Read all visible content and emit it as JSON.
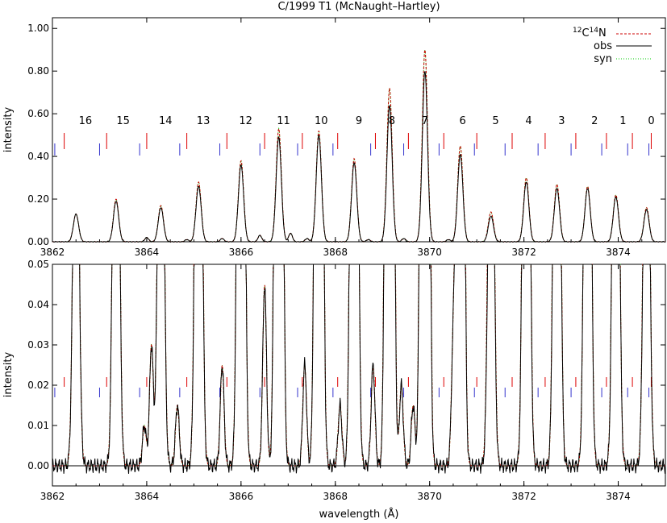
{
  "chart_data": [
    {
      "type": "line",
      "panel": "top",
      "title": "C/1999 T1 (McNaught–Hartley)",
      "xlabel": "",
      "ylabel": "intensity",
      "xlim": [
        3862,
        3875
      ],
      "ylim": [
        0,
        1.05
      ],
      "x_ticks": [
        3862,
        3864,
        3866,
        3868,
        3870,
        3872,
        3874
      ],
      "x_tick_labels": [
        "3862",
        "3864",
        "3866",
        "3868",
        "3870",
        "3872",
        "3874"
      ],
      "y_ticks": [
        0,
        0.2,
        0.4,
        0.6,
        0.8,
        1.0
      ],
      "y_tick_labels": [
        "0.00",
        "0.20",
        "0.40",
        "0.60",
        "0.80",
        "1.00"
      ],
      "legend": {
        "placement": "top-right",
        "entries": [
          {
            "label": "12C14N",
            "label_main_1": "C",
            "label_sup_1": "12",
            "label_main_2": "N",
            "label_sup_2": "14",
            "color": "#cc0000",
            "style": "dashed"
          },
          {
            "label": "obs",
            "color": "#000000",
            "style": "solid"
          },
          {
            "label": "syn",
            "color": "#00cc00",
            "style": "dotted"
          }
        ]
      },
      "line_numbers": [
        "16",
        "15",
        "14",
        "13",
        "12",
        "11",
        "10",
        "9",
        "8",
        "7",
        "6",
        "5",
        "4",
        "3",
        "2",
        "1",
        "0"
      ],
      "line_number_x": [
        3862.7,
        3863.5,
        3864.4,
        3865.2,
        3866.1,
        3866.9,
        3867.7,
        3868.5,
        3869.2,
        3869.9,
        3870.7,
        3871.4,
        3872.1,
        3872.8,
        3873.5,
        3874.1,
        3874.7
      ],
      "red_markers": [
        3862.25,
        3863.15,
        3864.0,
        3864.85,
        3865.7,
        3866.5,
        3867.3,
        3868.05,
        3868.85,
        3869.55,
        3870.3,
        3871.0,
        3871.75,
        3872.45,
        3873.1,
        3873.75,
        3874.3,
        3874.7
      ],
      "blue_markers": [
        3862.05,
        3863.0,
        3863.85,
        3864.7,
        3865.55,
        3866.4,
        3867.2,
        3867.95,
        3868.75,
        3869.45,
        3870.2,
        3870.95,
        3871.6,
        3872.3,
        3873.0,
        3873.65,
        3874.2,
        3874.65
      ],
      "peaks": [
        {
          "x": 3862.5,
          "h_obs": 0.13,
          "h_syn": 0.13
        },
        {
          "x": 3863.35,
          "h_obs": 0.19,
          "h_syn": 0.2
        },
        {
          "x": 3864.3,
          "h_obs": 0.16,
          "h_syn": 0.17
        },
        {
          "x": 3865.1,
          "h_obs": 0.26,
          "h_syn": 0.28
        },
        {
          "x": 3866.0,
          "h_obs": 0.36,
          "h_syn": 0.38
        },
        {
          "x": 3866.8,
          "h_obs": 0.49,
          "h_syn": 0.53
        },
        {
          "x": 3867.65,
          "h_obs": 0.5,
          "h_syn": 0.52
        },
        {
          "x": 3868.4,
          "h_obs": 0.37,
          "h_syn": 0.39
        },
        {
          "x": 3869.15,
          "h_obs": 0.64,
          "h_syn": 0.72
        },
        {
          "x": 3869.9,
          "h_obs": 0.8,
          "h_syn": 0.9
        },
        {
          "x": 3870.65,
          "h_obs": 0.41,
          "h_syn": 0.45
        },
        {
          "x": 3871.3,
          "h_obs": 0.12,
          "h_syn": 0.14
        },
        {
          "x": 3872.05,
          "h_obs": 0.28,
          "h_syn": 0.3
        },
        {
          "x": 3872.7,
          "h_obs": 0.25,
          "h_syn": 0.27
        },
        {
          "x": 3873.35,
          "h_obs": 0.25,
          "h_syn": 0.26
        },
        {
          "x": 3873.95,
          "h_obs": 0.21,
          "h_syn": 0.22
        },
        {
          "x": 3874.6,
          "h_obs": 0.15,
          "h_syn": 0.16
        }
      ],
      "small_features": [
        {
          "x": 3864.0,
          "h": 0.02
        },
        {
          "x": 3864.85,
          "h": 0.01
        },
        {
          "x": 3865.6,
          "h": 0.015
        },
        {
          "x": 3866.4,
          "h": 0.03
        },
        {
          "x": 3867.05,
          "h": 0.04
        },
        {
          "x": 3867.4,
          "h": 0.015
        },
        {
          "x": 3868.7,
          "h": 0.01
        },
        {
          "x": 3869.45,
          "h": 0.015
        },
        {
          "x": 3870.4,
          "h": 0.01
        }
      ]
    },
    {
      "type": "line",
      "panel": "bottom",
      "title": "",
      "xlabel": "wavelength (Å)",
      "ylabel": "intensity",
      "xlim": [
        3862,
        3875
      ],
      "ylim": [
        -0.005,
        0.05
      ],
      "x_ticks": [
        3862,
        3864,
        3866,
        3868,
        3870,
        3872,
        3874
      ],
      "x_tick_labels": [
        "3862",
        "3864",
        "3866",
        "3868",
        "3870",
        "3872",
        "3874"
      ],
      "y_ticks": [
        0,
        0.01,
        0.02,
        0.03,
        0.04,
        0.05
      ],
      "y_tick_labels": [
        "0.00",
        "0.01",
        "0.02",
        "0.03",
        "0.04",
        "0.05"
      ],
      "red_markers": [
        3862.25,
        3863.15,
        3864.0,
        3864.85,
        3865.7,
        3866.5,
        3867.3,
        3868.05,
        3868.85,
        3869.55,
        3870.3,
        3871.0,
        3871.75,
        3872.45,
        3873.1,
        3873.75,
        3874.3,
        3874.7
      ],
      "blue_markers": [
        3862.05,
        3863.0,
        3863.85,
        3864.7,
        3865.55,
        3866.4,
        3867.2,
        3867.95,
        3868.75,
        3869.45,
        3870.2,
        3870.95,
        3871.6,
        3872.3,
        3873.0,
        3873.65,
        3874.2,
        3874.65
      ],
      "small_features": [
        {
          "x": 3863.95,
          "h": 0.01
        },
        {
          "x": 3864.1,
          "h": 0.03
        },
        {
          "x": 3864.65,
          "h": 0.015
        },
        {
          "x": 3865.6,
          "h": 0.025
        },
        {
          "x": 3866.5,
          "h": 0.045
        },
        {
          "x": 3867.35,
          "h": 0.025
        },
        {
          "x": 3868.1,
          "h": 0.015
        },
        {
          "x": 3868.8,
          "h": 0.025
        },
        {
          "x": 3869.4,
          "h": 0.02
        },
        {
          "x": 3869.65,
          "h": 0.015
        },
        {
          "x": 3870.5,
          "h": 0.028
        },
        {
          "x": 3871.35,
          "h": 0.01
        }
      ]
    }
  ]
}
